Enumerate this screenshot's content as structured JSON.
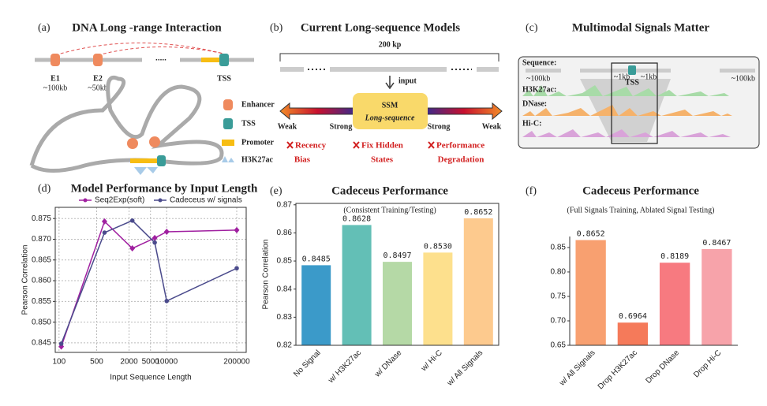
{
  "panel_a": {
    "label": "(a)",
    "title": "DNA Long -range Interaction",
    "e1": "E1",
    "e1_dist": "~100kb",
    "e2": "E2",
    "e2_dist": "~50kb",
    "tss": "TSS",
    "gap": ".....",
    "legend": [
      "Enhancer",
      "TSS",
      "Promoter",
      "H3K27ac"
    ]
  },
  "panel_b": {
    "label": "(b)",
    "title": "Current Long-sequence Models",
    "length": "200 kp",
    "input": "input",
    "model": "SSM",
    "model_sub": "Long-sequence",
    "strength": [
      "Weak",
      "Strong",
      "Strong",
      "Weak"
    ],
    "issues": [
      [
        "Recency",
        "Bias"
      ],
      [
        "Fix Hidden",
        "States"
      ],
      [
        "Performance",
        "Degradation"
      ]
    ]
  },
  "panel_c": {
    "label": "(c)",
    "title": "Multimodal Signals Matter",
    "tracks": [
      "Sequence:",
      "H3K27ac:",
      "DNase:",
      "Hi-C:"
    ],
    "left_dist": "~100kb",
    "near_left": "~1kb",
    "tss": "TSS",
    "near_right": "~1kb",
    "right_dist": "~100kb"
  },
  "chart_data": [
    {
      "type": "line",
      "label": "(d)",
      "title": "Model Performance by Input Length",
      "xlabel": "Input Sequence Length",
      "ylabel": "Pearson Correlation",
      "xscale": "log",
      "x": [
        110,
        700,
        2300,
        6000,
        10000,
        200000
      ],
      "series": [
        {
          "name": "Seq2Exp(soft)",
          "color": "#a020a0",
          "marker": "diamond",
          "values": [
            0.8441,
            0.8743,
            0.8678,
            0.8703,
            0.8718,
            0.8722
          ]
        },
        {
          "name": "Cadeceus w/ signals",
          "color": "#4b4b8c",
          "marker": "circle",
          "values": [
            0.8448,
            0.8716,
            0.8745,
            0.8692,
            0.8551,
            0.863
          ]
        }
      ],
      "xlim": [
        85,
        300000
      ],
      "xticks": [
        100,
        500,
        2000,
        5000,
        10000,
        200000
      ],
      "ylim": [
        0.8427,
        0.8777
      ],
      "yticks": [
        0.845,
        {
          "value": 0.85,
          "label": "0.850"
        },
        0.855,
        {
          "value": 0.86,
          "label": "0.860"
        },
        0.865,
        {
          "value": 0.87,
          "label": "0.870"
        },
        0.875
      ],
      "grid": true,
      "legend": "top"
    },
    {
      "type": "bar",
      "label": "(e)",
      "title": "Cadeceus Performance",
      "subtitle": "(Consistent Training/Testing)",
      "ylabel": "Pearson Correlation",
      "categories": [
        "No Signal",
        "w/ H3K27ac",
        "w/ DNase",
        "w/ Hi-C",
        "w/ All Signals"
      ],
      "values": [
        0.8485,
        0.8628,
        0.8497,
        0.853,
        0.8652
      ],
      "value_labels": [
        "0.8485",
        "0.8628",
        "0.8497",
        "0.8530",
        "0.8652"
      ],
      "colors": [
        "#3b9ac9",
        "#63bfb6",
        "#b5d9a6",
        "#fde08d",
        "#fdca8e"
      ],
      "ylim": [
        0.82,
        0.8705
      ],
      "yticks": [
        0.82,
        0.83,
        0.84,
        0.85,
        0.86,
        0.87
      ]
    },
    {
      "type": "bar",
      "label": "(f)",
      "title": "Cadeceus Performance",
      "subtitle": "(Full Signals Training, Ablated Signal Testing)",
      "categories": [
        "w/ All Signals",
        "Drop H3K27ac",
        "Drop DNase",
        "Drop Hi-C"
      ],
      "values": [
        0.8652,
        0.6964,
        0.8189,
        0.8467
      ],
      "value_labels": [
        "0.8652",
        "0.6964",
        "0.8189",
        "0.8467"
      ],
      "colors": [
        "#f8a070",
        "#f57a5a",
        "#f77a80",
        "#f7a3aa"
      ],
      "ylim": [
        0.65,
        0.8725
      ],
      "yticks": [
        0.65,
        {
          "value": 0.7,
          "label": "0.70"
        },
        0.75,
        {
          "value": 0.8,
          "label": "0.80"
        },
        0.85
      ]
    }
  ]
}
